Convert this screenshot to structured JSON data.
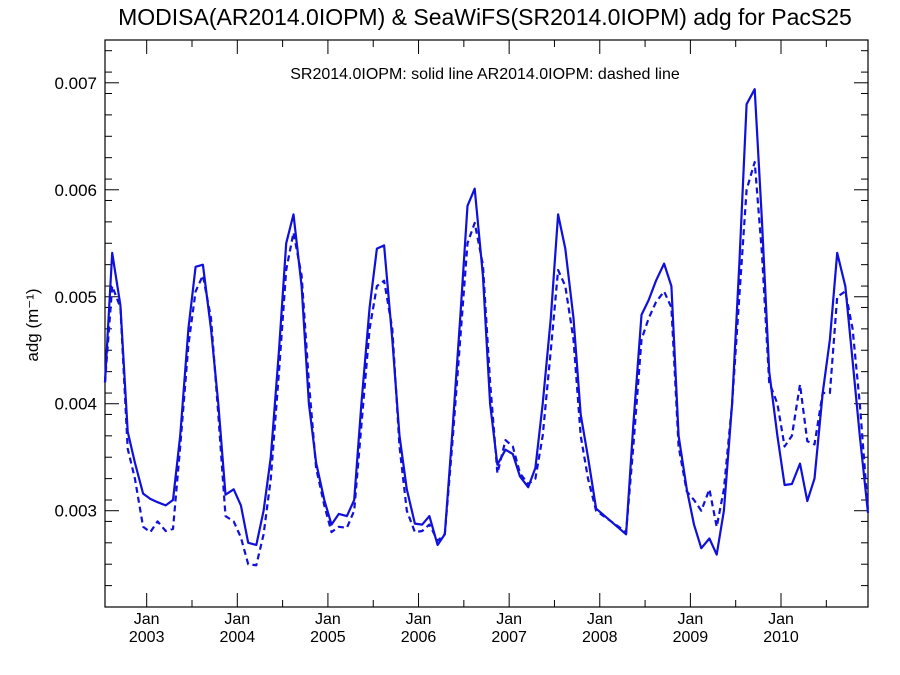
{
  "chart_data": {
    "type": "line",
    "title": "MODISA(AR2014.0IOPM) & SeaWiFS(SR2014.0IOPM)  adg for PacS25",
    "annotation": "SR2014.0IOPM: solid line   AR2014.0IOPM: dashed line",
    "ylabel": "adg (m⁻¹)",
    "xlabel": "",
    "ylim": [
      0.0021,
      0.0074
    ],
    "xlim": [
      2002.54,
      2010.96
    ],
    "yticks": [
      0.003,
      0.004,
      0.005,
      0.006,
      0.007
    ],
    "ytick_labels": [
      "0.003",
      "0.004",
      "0.005",
      "0.006",
      "0.007"
    ],
    "xticks": [
      2003.0,
      2004.0,
      2005.0,
      2006.0,
      2007.0,
      2008.0,
      2009.0,
      2010.0
    ],
    "xtick_labels_month": [
      "Jan",
      "Jan",
      "Jan",
      "Jan",
      "Jan",
      "Jan",
      "Jan",
      "Jan"
    ],
    "xtick_labels_year": [
      "2003",
      "2004",
      "2005",
      "2006",
      "2007",
      "2008",
      "2009",
      "2010"
    ],
    "grid": false,
    "line_color": "#1010dd",
    "series": [
      {
        "name": "SR2014.0IOPM",
        "style": "solid",
        "points": [
          [
            2002.54,
            0.0042
          ],
          [
            2002.62,
            0.00541
          ],
          [
            2002.71,
            0.00492
          ],
          [
            2002.79,
            0.00374
          ],
          [
            2002.87,
            0.00345
          ],
          [
            2002.96,
            0.00316
          ],
          [
            2003.04,
            0.00311
          ],
          [
            2003.12,
            0.00308
          ],
          [
            2003.21,
            0.00305
          ],
          [
            2003.29,
            0.0031
          ],
          [
            2003.37,
            0.0037
          ],
          [
            2003.46,
            0.0047
          ],
          [
            2003.54,
            0.00528
          ],
          [
            2003.62,
            0.0053
          ],
          [
            2003.71,
            0.0047
          ],
          [
            2003.79,
            0.004
          ],
          [
            2003.87,
            0.00315
          ],
          [
            2003.96,
            0.0032
          ],
          [
            2004.04,
            0.00305
          ],
          [
            2004.12,
            0.0027
          ],
          [
            2004.21,
            0.00268
          ],
          [
            2004.29,
            0.003
          ],
          [
            2004.37,
            0.0035
          ],
          [
            2004.46,
            0.0045
          ],
          [
            2004.54,
            0.0055
          ],
          [
            2004.62,
            0.00577
          ],
          [
            2004.71,
            0.0051
          ],
          [
            2004.79,
            0.004
          ],
          [
            2004.87,
            0.00345
          ],
          [
            2004.96,
            0.0031
          ],
          [
            2005.04,
            0.00287
          ],
          [
            2005.12,
            0.00297
          ],
          [
            2005.21,
            0.00295
          ],
          [
            2005.29,
            0.0031
          ],
          [
            2005.37,
            0.004
          ],
          [
            2005.46,
            0.0049
          ],
          [
            2005.54,
            0.00545
          ],
          [
            2005.62,
            0.00548
          ],
          [
            2005.71,
            0.0046
          ],
          [
            2005.79,
            0.0037
          ],
          [
            2005.87,
            0.0032
          ],
          [
            2005.96,
            0.00288
          ],
          [
            2006.04,
            0.00287
          ],
          [
            2006.12,
            0.00295
          ],
          [
            2006.21,
            0.00268
          ],
          [
            2006.29,
            0.00278
          ],
          [
            2006.37,
            0.0037
          ],
          [
            2006.46,
            0.0048
          ],
          [
            2006.54,
            0.00585
          ],
          [
            2006.62,
            0.00601
          ],
          [
            2006.71,
            0.0052
          ],
          [
            2006.79,
            0.004
          ],
          [
            2006.87,
            0.00343
          ],
          [
            2006.96,
            0.00357
          ],
          [
            2007.04,
            0.00353
          ],
          [
            2007.12,
            0.00332
          ],
          [
            2007.21,
            0.00322
          ],
          [
            2007.29,
            0.0034
          ],
          [
            2007.37,
            0.004
          ],
          [
            2007.46,
            0.0048
          ],
          [
            2007.54,
            0.00577
          ],
          [
            2007.62,
            0.00545
          ],
          [
            2007.71,
            0.0048
          ],
          [
            2007.79,
            0.0039
          ],
          [
            2007.87,
            0.0035
          ],
          [
            2007.96,
            0.00302
          ],
          [
            2008.29,
            0.00278
          ],
          [
            2008.37,
            0.0038
          ],
          [
            2008.46,
            0.00483
          ],
          [
            2008.54,
            0.00497
          ],
          [
            2008.62,
            0.00515
          ],
          [
            2008.71,
            0.00531
          ],
          [
            2008.79,
            0.0051
          ],
          [
            2008.87,
            0.0037
          ],
          [
            2008.96,
            0.0032
          ],
          [
            2009.04,
            0.00287
          ],
          [
            2009.12,
            0.00265
          ],
          [
            2009.21,
            0.00274
          ],
          [
            2009.29,
            0.00259
          ],
          [
            2009.37,
            0.003
          ],
          [
            2009.46,
            0.004
          ],
          [
            2009.54,
            0.0053
          ],
          [
            2009.62,
            0.0068
          ],
          [
            2009.71,
            0.00694
          ],
          [
            2009.79,
            0.0057
          ],
          [
            2009.87,
            0.0043
          ],
          [
            2009.96,
            0.0037
          ],
          [
            2010.04,
            0.00324
          ],
          [
            2010.12,
            0.00325
          ],
          [
            2010.21,
            0.00344
          ],
          [
            2010.29,
            0.00309
          ],
          [
            2010.37,
            0.0033
          ],
          [
            2010.46,
            0.0041
          ],
          [
            2010.54,
            0.0046
          ],
          [
            2010.62,
            0.00541
          ],
          [
            2010.71,
            0.0051
          ],
          [
            2010.79,
            0.0044
          ],
          [
            2010.87,
            0.0037
          ],
          [
            2010.96,
            0.00298
          ]
        ]
      },
      {
        "name": "AR2014.0IOPM",
        "style": "dashed",
        "points": [
          [
            2002.54,
            0.0042
          ],
          [
            2002.62,
            0.0051
          ],
          [
            2002.71,
            0.0049
          ],
          [
            2002.79,
            0.00358
          ],
          [
            2002.87,
            0.0033
          ],
          [
            2002.96,
            0.00285
          ],
          [
            2003.04,
            0.0028
          ],
          [
            2003.12,
            0.0029
          ],
          [
            2003.21,
            0.00281
          ],
          [
            2003.29,
            0.00283
          ],
          [
            2003.37,
            0.0036
          ],
          [
            2003.46,
            0.00455
          ],
          [
            2003.54,
            0.00505
          ],
          [
            2003.62,
            0.0052
          ],
          [
            2003.71,
            0.0048
          ],
          [
            2003.79,
            0.0039
          ],
          [
            2003.87,
            0.00295
          ],
          [
            2003.96,
            0.0029
          ],
          [
            2004.04,
            0.00275
          ],
          [
            2004.12,
            0.0025
          ],
          [
            2004.21,
            0.00249
          ],
          [
            2004.29,
            0.00278
          ],
          [
            2004.37,
            0.0033
          ],
          [
            2004.46,
            0.0043
          ],
          [
            2004.54,
            0.00525
          ],
          [
            2004.62,
            0.0056
          ],
          [
            2004.71,
            0.0052
          ],
          [
            2004.79,
            0.0042
          ],
          [
            2004.87,
            0.0034
          ],
          [
            2004.96,
            0.00305
          ],
          [
            2005.04,
            0.0028
          ],
          [
            2005.12,
            0.00285
          ],
          [
            2005.21,
            0.00284
          ],
          [
            2005.29,
            0.003
          ],
          [
            2005.37,
            0.0038
          ],
          [
            2005.46,
            0.0047
          ],
          [
            2005.54,
            0.0051
          ],
          [
            2005.62,
            0.00515
          ],
          [
            2005.71,
            0.0047
          ],
          [
            2005.79,
            0.0036
          ],
          [
            2005.87,
            0.003
          ],
          [
            2005.96,
            0.0028
          ],
          [
            2006.04,
            0.00281
          ],
          [
            2006.12,
            0.00287
          ],
          [
            2006.21,
            0.00272
          ],
          [
            2006.29,
            0.00278
          ],
          [
            2006.37,
            0.0036
          ],
          [
            2006.46,
            0.0046
          ],
          [
            2006.54,
            0.0055
          ],
          [
            2006.62,
            0.00569
          ],
          [
            2006.71,
            0.0053
          ],
          [
            2006.79,
            0.0042
          ],
          [
            2006.87,
            0.00335
          ],
          [
            2006.96,
            0.00366
          ],
          [
            2007.04,
            0.0036
          ],
          [
            2007.12,
            0.00335
          ],
          [
            2007.21,
            0.00325
          ],
          [
            2007.29,
            0.0033
          ],
          [
            2007.37,
            0.0037
          ],
          [
            2007.46,
            0.0045
          ],
          [
            2007.54,
            0.00525
          ],
          [
            2007.62,
            0.0051
          ],
          [
            2007.71,
            0.0046
          ],
          [
            2007.79,
            0.0037
          ],
          [
            2007.87,
            0.0033
          ],
          [
            2007.96,
            0.003
          ],
          [
            2008.29,
            0.0028
          ],
          [
            2008.37,
            0.0036
          ],
          [
            2008.46,
            0.0046
          ],
          [
            2008.54,
            0.0048
          ],
          [
            2008.62,
            0.00495
          ],
          [
            2008.71,
            0.00505
          ],
          [
            2008.79,
            0.0049
          ],
          [
            2008.87,
            0.0036
          ],
          [
            2008.96,
            0.00318
          ],
          [
            2009.04,
            0.0031
          ],
          [
            2009.12,
            0.003
          ],
          [
            2009.21,
            0.0032
          ],
          [
            2009.29,
            0.00285
          ],
          [
            2009.37,
            0.0032
          ],
          [
            2009.46,
            0.004
          ],
          [
            2009.54,
            0.005
          ],
          [
            2009.62,
            0.006
          ],
          [
            2009.71,
            0.00626
          ],
          [
            2009.79,
            0.0054
          ],
          [
            2009.87,
            0.0042
          ],
          [
            2009.96,
            0.004
          ],
          [
            2010.04,
            0.0036
          ],
          [
            2010.12,
            0.0037
          ],
          [
            2010.21,
            0.00418
          ],
          [
            2010.29,
            0.00365
          ],
          [
            2010.37,
            0.00362
          ],
          [
            2010.46,
            0.0041
          ],
          [
            2010.54,
            0.0041
          ],
          [
            2010.62,
            0.005
          ],
          [
            2010.71,
            0.00505
          ],
          [
            2010.79,
            0.0047
          ],
          [
            2010.87,
            0.004
          ],
          [
            2010.96,
            0.003
          ]
        ]
      }
    ]
  }
}
